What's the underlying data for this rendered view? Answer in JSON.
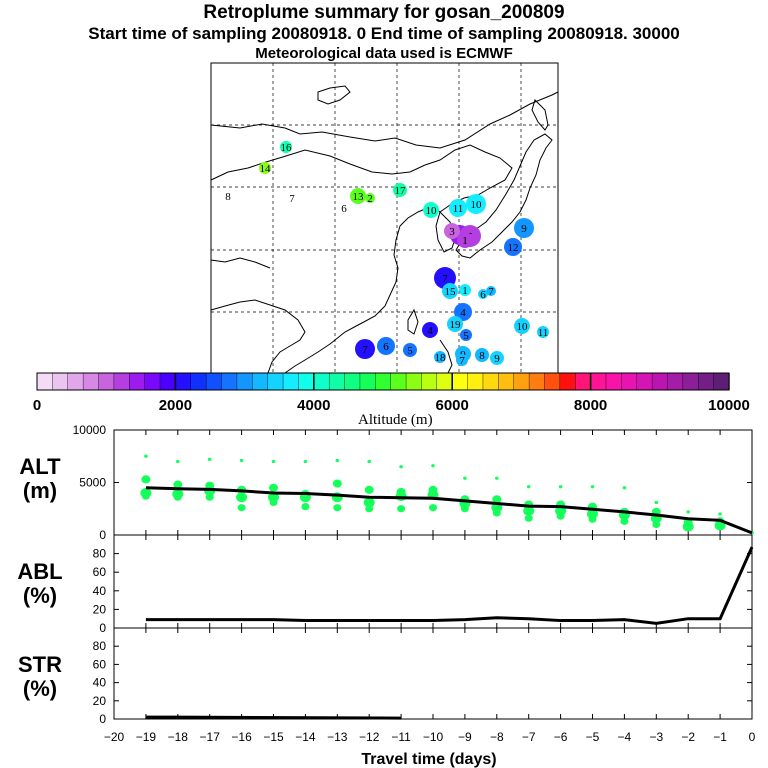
{
  "header": {
    "title": "Retroplume summary for gosan_200809",
    "subtitle": "Start time of sampling 20080918.    0    End time of sampling 20080918. 30000",
    "met": "Meteorological data used is ECMWF"
  },
  "colorbar": {
    "labels": [
      "0",
      "2000",
      "4000",
      "6000",
      "8000",
      "10000"
    ],
    "title": "Altitude (m)",
    "colors": [
      "#f4dcf6",
      "#ecc4f0",
      "#e2a6ea",
      "#d688e4",
      "#c764de",
      "#b43ee0",
      "#9c1cf0",
      "#7a08fc",
      "#4a00ff",
      "#2410ff",
      "#1030ff",
      "#1050ff",
      "#1474ff",
      "#1496ff",
      "#14b8ff",
      "#14d4ff",
      "#14ecff",
      "#10ffea",
      "#10ffc8",
      "#10ffa6",
      "#10ff80",
      "#14ff5a",
      "#30ff30",
      "#5cff1c",
      "#8aff14",
      "#b8ff10",
      "#e0ff10",
      "#ffff10",
      "#fff010",
      "#ffd810",
      "#ffbe10",
      "#ffa010",
      "#ff7c10",
      "#ff5010",
      "#ff1010",
      "#ff1478",
      "#ff1496",
      "#f814a8",
      "#e814b2",
      "#d414b4",
      "#bc14b0",
      "#a41ca8",
      "#8c1e9a",
      "#741e88",
      "#5e1e74"
    ]
  },
  "map_labels": {
    "days_white": [
      "8",
      "7",
      "6"
    ],
    "markers": [
      {
        "day": "16",
        "color": "#10ffb0"
      },
      {
        "day": "14",
        "color": "#8aff14"
      },
      {
        "day": "13",
        "color": "#5cff1c"
      },
      {
        "day": "2",
        "color": "#5cff1c"
      },
      {
        "day": "17",
        "color": "#10ffa6"
      },
      {
        "day": "10",
        "color": "#10ffd0"
      },
      {
        "day": "11",
        "color": "#14ecff"
      },
      {
        "day": "10",
        "color": "#14ecff"
      },
      {
        "day": "9",
        "color": "#1496ff"
      },
      {
        "day": "12",
        "color": "#1474ff"
      },
      {
        "day": "2",
        "color": "#9c1cf0"
      },
      {
        "day": "5",
        "color": "#b43ee0"
      },
      {
        "day": "3",
        "color": "#c764de"
      },
      {
        "day": "1",
        "color": "#b43ee0"
      },
      {
        "day": "7",
        "color": "#2410ff"
      },
      {
        "day": "15",
        "color": "#14d4ff"
      },
      {
        "day": "1",
        "color": "#14ecff"
      },
      {
        "day": "6",
        "color": "#14d4ff"
      },
      {
        "day": "7",
        "color": "#14b8ff"
      },
      {
        "day": "4",
        "color": "#1474ff"
      },
      {
        "day": "4",
        "color": "#2410ff"
      },
      {
        "day": "19",
        "color": "#14d4ff"
      },
      {
        "day": "5",
        "color": "#1474ff"
      },
      {
        "day": "10",
        "color": "#14d4ff"
      },
      {
        "day": "11",
        "color": "#14d4ff"
      },
      {
        "day": "7",
        "color": "#2410ff"
      },
      {
        "day": "6",
        "color": "#1474ff"
      },
      {
        "day": "5",
        "color": "#1474ff"
      },
      {
        "day": "18",
        "color": "#14b8ff"
      },
      {
        "day": "9",
        "color": "#14b8ff"
      },
      {
        "day": "7",
        "color": "#14b8ff"
      },
      {
        "day": "8",
        "color": "#14b8ff"
      },
      {
        "day": "9",
        "color": "#14d4ff"
      }
    ]
  },
  "chart_data": [
    {
      "type": "line",
      "ylabel": "ALT\n(m)",
      "ylabel_lines": [
        "ALT",
        "(m)"
      ],
      "xlim": [
        -20,
        0
      ],
      "ylim": [
        0,
        10000
      ],
      "yticks": [
        0,
        5000,
        10000
      ],
      "ytick_labels": [
        "0",
        "5000",
        "10000"
      ],
      "series": [
        {
          "name": "mean altitude",
          "x": [
            -19,
            -18,
            -17,
            -16,
            -15,
            -14,
            -13,
            -12,
            -11,
            -10,
            -9,
            -8,
            -7,
            -6,
            -5,
            -4,
            -3,
            -2,
            -1,
            0
          ],
          "values": [
            4500,
            4400,
            4350,
            4200,
            4000,
            3950,
            3800,
            3600,
            3550,
            3500,
            3250,
            3000,
            2750,
            2700,
            2450,
            2200,
            1900,
            1550,
            1400,
            200
          ]
        }
      ],
      "cluster_points": [
        {
          "day": -19,
          "alts": [
            7500,
            5300,
            4000,
            3700
          ]
        },
        {
          "day": -18,
          "alts": [
            7000,
            4800,
            3900,
            3600
          ]
        },
        {
          "day": -17,
          "alts": [
            7200,
            4700,
            4200,
            3600
          ]
        },
        {
          "day": -16,
          "alts": [
            7100,
            4300,
            3600,
            2600
          ]
        },
        {
          "day": -15,
          "alts": [
            7000,
            4500,
            3600,
            3100
          ]
        },
        {
          "day": -14,
          "alts": [
            7000,
            3900,
            3600,
            2700
          ]
        },
        {
          "day": -13,
          "alts": [
            7100,
            4900,
            3600,
            2600
          ]
        },
        {
          "day": -12,
          "alts": [
            7000,
            4300,
            3100,
            2500
          ]
        },
        {
          "day": -11,
          "alts": [
            6500,
            4100,
            3700,
            2500
          ]
        },
        {
          "day": -10,
          "alts": [
            6600,
            4300,
            3800,
            2600
          ]
        },
        {
          "day": -9,
          "alts": [
            5400,
            3400,
            3000,
            2500
          ]
        },
        {
          "day": -8,
          "alts": [
            5400,
            3400,
            2600,
            2100
          ]
        },
        {
          "day": -7,
          "alts": [
            4600,
            2900,
            2300,
            1600
          ]
        },
        {
          "day": -6,
          "alts": [
            4600,
            2900,
            2300,
            1800
          ]
        },
        {
          "day": -5,
          "alts": [
            4600,
            2700,
            2000,
            1500
          ]
        },
        {
          "day": -4,
          "alts": [
            4500,
            2200,
            1900,
            1300
          ]
        },
        {
          "day": -3,
          "alts": [
            3100,
            2200,
            1600,
            1000
          ]
        },
        {
          "day": -2,
          "alts": [
            2200,
            1200,
            800
          ]
        },
        {
          "day": -1,
          "alts": [
            2000,
            1300,
            900
          ]
        },
        {
          "day": 0,
          "alts": [
            200
          ]
        }
      ]
    },
    {
      "type": "line",
      "ylabel_lines": [
        "ABL",
        "(%)"
      ],
      "xlim": [
        -20,
        0
      ],
      "ylim": [
        0,
        100
      ],
      "yticks": [
        0,
        20,
        40,
        60,
        80
      ],
      "ytick_labels": [
        "0",
        "20",
        "40",
        "60",
        "80"
      ],
      "series": [
        {
          "name": "ABL fraction",
          "x": [
            -19,
            -18,
            -17,
            -16,
            -15,
            -14,
            -13,
            -12,
            -11,
            -10,
            -9,
            -8,
            -7,
            -6,
            -5,
            -4,
            -3,
            -2,
            -1,
            0
          ],
          "values": [
            9,
            9,
            9,
            9,
            9,
            8,
            8,
            8,
            8,
            8,
            9,
            11,
            10,
            8,
            8,
            9,
            5,
            10,
            10,
            87
          ]
        }
      ]
    },
    {
      "type": "line",
      "ylabel_lines": [
        "STR",
        "(%)"
      ],
      "xlim": [
        -20,
        0
      ],
      "ylim": [
        0,
        100
      ],
      "yticks": [
        0,
        20,
        40,
        60,
        80
      ],
      "ytick_labels": [
        "0",
        "20",
        "40",
        "60",
        "80"
      ],
      "xticks": [
        -20,
        -19,
        -18,
        -17,
        -16,
        -15,
        -14,
        -13,
        -12,
        -11,
        -10,
        -9,
        -8,
        -7,
        -6,
        -5,
        -4,
        -3,
        -2,
        -1,
        0
      ],
      "xtick_labels": [
        "−20",
        "−19",
        "−18",
        "−17",
        "−16",
        "−15",
        "−14",
        "−13",
        "−12",
        "−11",
        "−10",
        "−9",
        "−8",
        "−7",
        "−6",
        "−5",
        "−4",
        "−3",
        "−2",
        "−1",
        "0"
      ],
      "xlabel": "Travel time (days)",
      "series": [
        {
          "name": "stratospheric fraction",
          "x": [
            -19,
            -18,
            -11
          ],
          "values": [
            2,
            2,
            1
          ]
        }
      ]
    }
  ]
}
